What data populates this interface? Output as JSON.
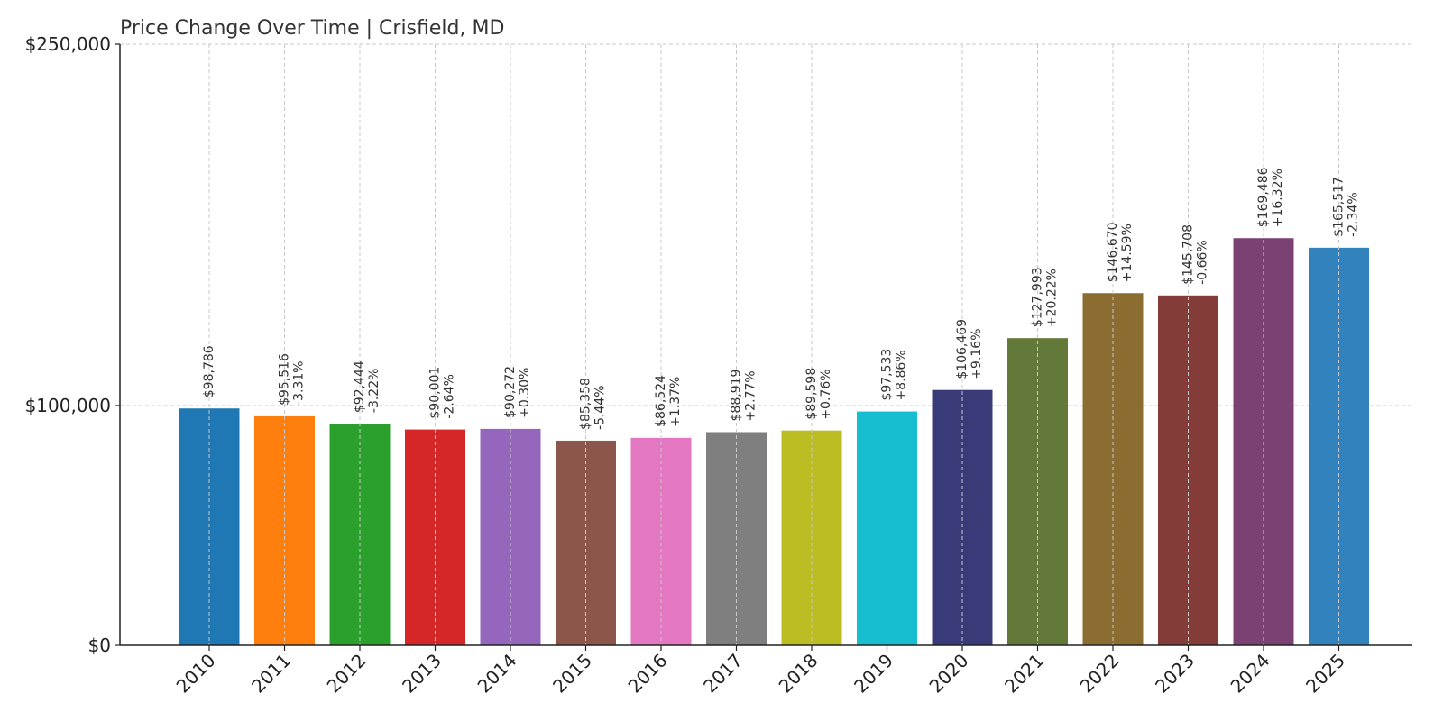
{
  "chart_data": {
    "type": "bar",
    "title": "Price Change Over Time | Crisfield, MD",
    "xlabel": "",
    "ylabel": "",
    "ylim": [
      0,
      250000
    ],
    "yticks": [
      0,
      100000,
      250000
    ],
    "ytick_labels": [
      "$0",
      "$100,000",
      "$250,000"
    ],
    "grid": true,
    "categories": [
      "2010",
      "2011",
      "2012",
      "2013",
      "2014",
      "2015",
      "2016",
      "2017",
      "2018",
      "2019",
      "2020",
      "2021",
      "2022",
      "2023",
      "2024",
      "2025"
    ],
    "values": [
      98786,
      95516,
      92444,
      90001,
      90272,
      85358,
      86524,
      88919,
      89598,
      97533,
      106469,
      127993,
      146670,
      145708,
      169486,
      165517
    ],
    "value_labels": [
      "$98,786",
      "$95,516",
      "$92,444",
      "$90,001",
      "$90,272",
      "$85,358",
      "$86,524",
      "$88,919",
      "$89,598",
      "$97,533",
      "$106,469",
      "$127,993",
      "$146,670",
      "$145,708",
      "$169,486",
      "$165,517"
    ],
    "change_labels": [
      "",
      "-3.31%",
      "-3.22%",
      "-2.64%",
      "+0.30%",
      "-5.44%",
      "+1.37%",
      "+2.77%",
      "+0.76%",
      "+8.86%",
      "+9.16%",
      "+20.22%",
      "+14.59%",
      "-0.66%",
      "+16.32%",
      "-2.34%"
    ],
    "colors": [
      "#1f77b4",
      "#ff7f0e",
      "#2ca02c",
      "#d62728",
      "#9467bd",
      "#8c564b",
      "#e377c2",
      "#7f7f7f",
      "#bcbd22",
      "#17becf",
      "#393b79",
      "#637939",
      "#8c6d31",
      "#843c39",
      "#7b4173",
      "#3182bd"
    ]
  }
}
